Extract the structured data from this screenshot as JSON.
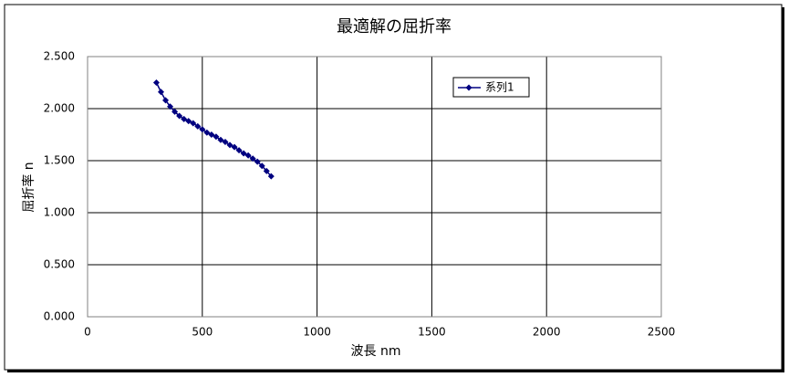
{
  "chart_data": {
    "type": "line",
    "title": "最適解の屈折率",
    "x_label": "波長 nm",
    "y_label": "屈折率 n",
    "x": [
      300,
      320,
      340,
      360,
      380,
      400,
      420,
      440,
      460,
      480,
      500,
      520,
      540,
      560,
      580,
      600,
      620,
      640,
      660,
      680,
      700,
      720,
      740,
      760,
      780,
      800
    ],
    "series": [
      {
        "name": "系列1",
        "color": "#000080",
        "values": [
          2.25,
          2.16,
          2.08,
          2.02,
          1.97,
          1.93,
          1.9,
          1.88,
          1.86,
          1.83,
          1.8,
          1.77,
          1.75,
          1.73,
          1.7,
          1.68,
          1.65,
          1.63,
          1.6,
          1.57,
          1.55,
          1.52,
          1.49,
          1.45,
          1.4,
          1.35
        ]
      }
    ],
    "xlim": [
      0,
      2500
    ],
    "xticks": [
      0,
      500,
      1000,
      1500,
      2000,
      2500
    ],
    "ylim": [
      0,
      2.5
    ],
    "yticks": [
      {
        "value": 0,
        "label": "0.000"
      },
      {
        "value": 0.5,
        "label": "0.500"
      },
      {
        "value": 1,
        "label": "1.000"
      },
      {
        "value": 1.5,
        "label": "1.500"
      },
      {
        "value": 2,
        "label": "2.000"
      },
      {
        "value": 2.5,
        "label": "2.500"
      }
    ],
    "grid": true,
    "legend": "upper-right"
  }
}
